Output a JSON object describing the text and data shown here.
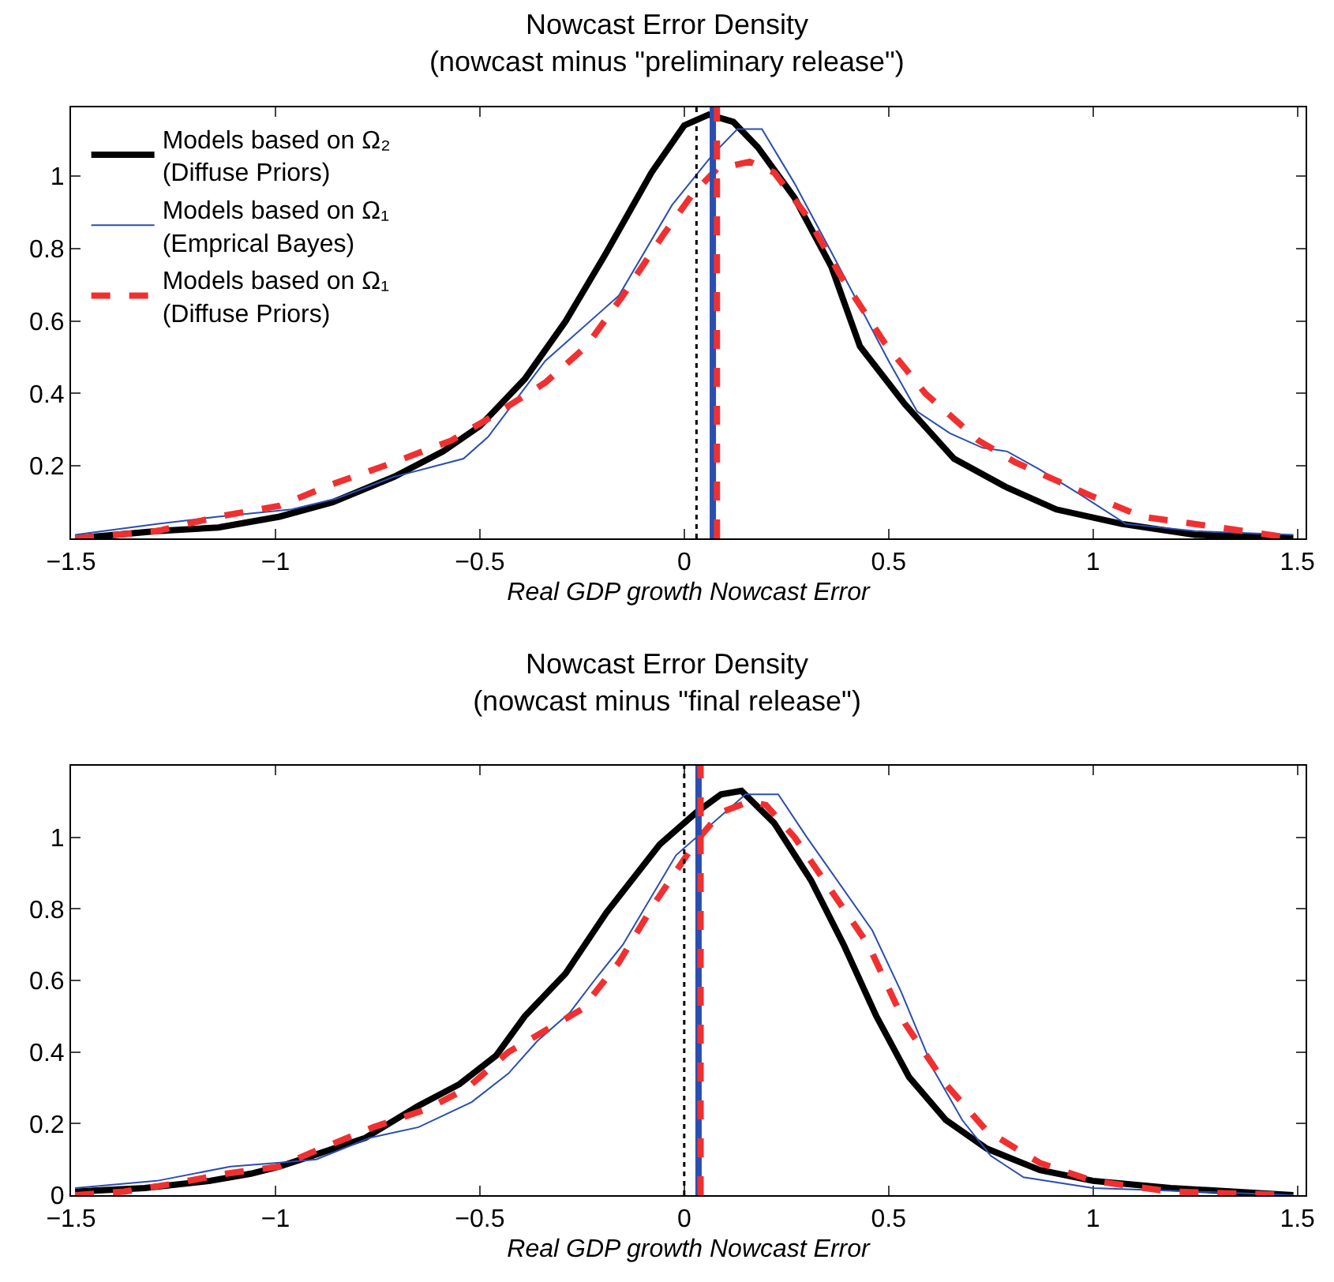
{
  "chart_data": [
    {
      "type": "line",
      "title": "Nowcast Error Density",
      "subtitle": "(nowcast minus \"preliminary release\")",
      "xlabel": "Real GDP growth Nowcast Error",
      "xlim": [
        -1.5,
        1.52
      ],
      "xticks": [
        -1.5,
        -1,
        -0.5,
        0,
        0.5,
        1,
        1.5
      ],
      "ylim": [
        0,
        1.19
      ],
      "yticks": [
        0.2,
        0.4,
        0.6,
        0.8,
        1
      ],
      "grid": false,
      "legend": "top left",
      "marker": "none",
      "series": [
        {
          "name": "Models based on Ω₂ (Diffuse Priors)",
          "color": "#000000",
          "line_style": "solid",
          "x": [
            -1.49,
            -1.29,
            -1.14,
            -0.99,
            -0.86,
            -0.71,
            -0.59,
            -0.5,
            -0.39,
            -0.29,
            -0.19,
            -0.08,
            0,
            0.06,
            0.12,
            0.18,
            0.27,
            0.36,
            0.43,
            0.54,
            0.66,
            0.79,
            0.91,
            1.07,
            1.25,
            1.49
          ],
          "values": [
            0,
            0.02,
            0.03,
            0.06,
            0.1,
            0.17,
            0.24,
            0.31,
            0.44,
            0.6,
            0.79,
            1.01,
            1.14,
            1.17,
            1.15,
            1.08,
            0.94,
            0.75,
            0.53,
            0.37,
            0.22,
            0.14,
            0.08,
            0.04,
            0.01,
            0
          ]
        },
        {
          "name": "Models based on Ω₁ (Emprical Bayes)",
          "color": "#2a4eb0",
          "line_style": "solid",
          "x": [
            -1.49,
            -1.29,
            -1.14,
            -0.96,
            -0.85,
            -0.71,
            -0.54,
            -0.48,
            -0.34,
            -0.16,
            -0.03,
            0.07,
            0.13,
            0.19,
            0.27,
            0.36,
            0.5,
            0.57,
            0.65,
            0.73,
            0.79,
            0.87,
            0.97,
            1.08,
            1.25,
            1.49
          ],
          "values": [
            0.01,
            0.04,
            0.06,
            0.08,
            0.11,
            0.17,
            0.22,
            0.28,
            0.49,
            0.67,
            0.92,
            1.06,
            1.13,
            1.13,
            0.98,
            0.79,
            0.49,
            0.35,
            0.29,
            0.25,
            0.24,
            0.19,
            0.12,
            0.04,
            0.02,
            0.01
          ]
        },
        {
          "name": "Models based on Ω₁ (Diffuse Priors)",
          "color": "#f03030",
          "line_style": "dashed",
          "x": [
            -1.49,
            -1.29,
            -1.14,
            -0.99,
            -0.86,
            -0.71,
            -0.57,
            -0.48,
            -0.34,
            -0.24,
            -0.15,
            -0.05,
            0.02,
            0.08,
            0.16,
            0.22,
            0.3,
            0.38,
            0.49,
            0.59,
            0.72,
            0.81,
            0.99,
            1.12,
            1.31,
            1.49
          ],
          "values": [
            0,
            0.02,
            0.06,
            0.09,
            0.15,
            0.21,
            0.27,
            0.33,
            0.43,
            0.53,
            0.67,
            0.84,
            0.95,
            1.02,
            1.04,
            1.01,
            0.89,
            0.73,
            0.54,
            0.4,
            0.27,
            0.21,
            0.12,
            0.06,
            0.03,
            0
          ]
        }
      ],
      "ref_lines": [
        {
          "axis": "x",
          "value": 0.03,
          "color": "#000000",
          "line_style": "dotted"
        },
        {
          "axis": "x",
          "value": 0.07,
          "color": "#2a4eb0",
          "line_style": "solid"
        },
        {
          "axis": "x",
          "value": 0.08,
          "color": "#f03030",
          "line_style": "dashed"
        }
      ]
    },
    {
      "type": "line",
      "title": "Nowcast Error Density",
      "subtitle": "(nowcast minus \"final release\")",
      "xlabel": "Real GDP growth Nowcast Error",
      "xlim": [
        -1.5,
        1.52
      ],
      "xticks": [
        -1.5,
        -1,
        -0.5,
        0,
        0.5,
        1,
        1.5
      ],
      "ylim": [
        0,
        1.2
      ],
      "yticks": [
        0,
        0.2,
        0.4,
        0.6,
        0.8,
        1
      ],
      "grid": false,
      "legend": false,
      "marker": "none",
      "series": [
        {
          "color": "#000000",
          "line_style": "solid",
          "x": [
            -1.49,
            -1.32,
            -1.16,
            -1.06,
            -0.99,
            -0.91,
            -0.78,
            -0.65,
            -0.55,
            -0.46,
            -0.39,
            -0.29,
            -0.19,
            -0.06,
            0.03,
            0.09,
            0.14,
            0.22,
            0.31,
            0.39,
            0.47,
            0.55,
            0.64,
            0.74,
            0.87,
            1,
            1.19,
            1.49
          ],
          "values": [
            0.01,
            0.02,
            0.04,
            0.06,
            0.08,
            0.11,
            0.16,
            0.25,
            0.31,
            0.39,
            0.5,
            0.62,
            0.79,
            0.98,
            1.07,
            1.12,
            1.13,
            1.04,
            0.88,
            0.7,
            0.5,
            0.33,
            0.21,
            0.13,
            0.07,
            0.04,
            0.02,
            0
          ]
        },
        {
          "color": "#2a4eb0",
          "line_style": "solid",
          "x": [
            -1.49,
            -1.29,
            -1.11,
            -1,
            -0.9,
            -0.77,
            -0.65,
            -0.52,
            -0.43,
            -0.36,
            -0.28,
            -0.22,
            -0.15,
            -0.02,
            0.15,
            0.23,
            0.3,
            0.46,
            0.53,
            0.61,
            0.68,
            0.75,
            0.83,
            1,
            1.25,
            1.49
          ],
          "values": [
            0.02,
            0.04,
            0.08,
            0.09,
            0.1,
            0.16,
            0.19,
            0.26,
            0.34,
            0.43,
            0.51,
            0.6,
            0.7,
            0.95,
            1.12,
            1.12,
            1,
            0.74,
            0.57,
            0.35,
            0.21,
            0.11,
            0.05,
            0.02,
            0.01,
            0
          ]
        },
        {
          "color": "#f03030",
          "line_style": "dashed",
          "x": [
            -1.49,
            -1.37,
            -1.26,
            -1.12,
            -0.99,
            -0.91,
            -0.76,
            -0.63,
            -0.53,
            -0.43,
            -0.34,
            -0.25,
            -0.16,
            -0.07,
            0.03,
            0.09,
            0.16,
            0.2,
            0.27,
            0.36,
            0.45,
            0.54,
            0.64,
            0.74,
            0.87,
            1,
            1.19,
            1.49
          ],
          "values": [
            0,
            0.01,
            0.03,
            0.06,
            0.08,
            0.12,
            0.19,
            0.24,
            0.3,
            0.4,
            0.46,
            0.52,
            0.65,
            0.82,
            0.99,
            1.07,
            1.1,
            1.09,
            1,
            0.85,
            0.7,
            0.48,
            0.31,
            0.18,
            0.09,
            0.04,
            0.01,
            0
          ]
        }
      ],
      "ref_lines": [
        {
          "axis": "x",
          "value": 0,
          "color": "#000000",
          "line_style": "dotted"
        },
        {
          "axis": "x",
          "value": 0.035,
          "color": "#2a4eb0",
          "line_style": "solid"
        },
        {
          "axis": "x",
          "value": 0.04,
          "color": "#f03030",
          "line_style": "dashed"
        }
      ]
    }
  ]
}
